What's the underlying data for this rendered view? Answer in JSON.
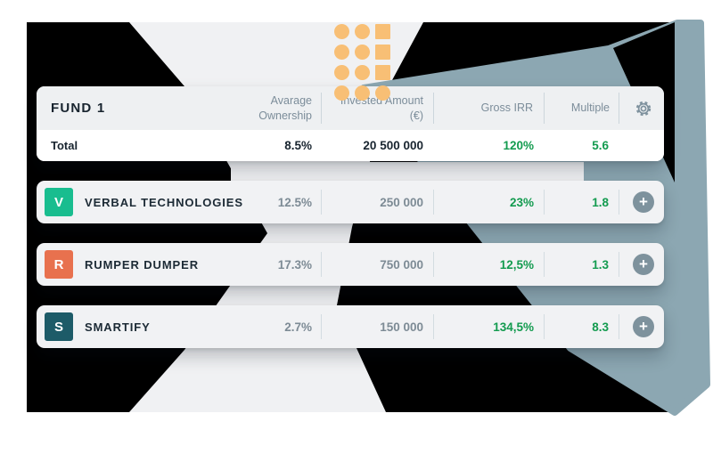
{
  "table": {
    "fund_label": "FUND 1",
    "columns": {
      "ownership": "Avarage Ownership",
      "invested": "Invested Amount (€)",
      "irr": "Gross IRR",
      "multiple": "Multiple"
    },
    "total_row": {
      "label": "Total",
      "ownership": "8.5%",
      "invested": "20 500 000",
      "irr": "120%",
      "multiple": "5.6"
    },
    "rows": [
      {
        "initial": "V",
        "name": "VERBAL TECHNOLOGIES",
        "ownership": "12.5%",
        "invested": "250 000",
        "irr": "23%",
        "multiple": "1.8",
        "icon_color": "#19bd8f",
        "expand_label": "+"
      },
      {
        "initial": "R",
        "name": "RUMPER DUMPER",
        "ownership": "17.3%",
        "invested": "750 000",
        "irr": "12,5%",
        "multiple": "1.3",
        "icon_color": "#e8714e",
        "expand_label": "+"
      },
      {
        "initial": "S",
        "name": "SMARTIFY",
        "ownership": "2.7%",
        "invested": "150 000",
        "irr": "134,5%",
        "multiple": "8.3",
        "icon_color": "#1d5b68",
        "expand_label": "+"
      }
    ]
  },
  "icons": {
    "settings": "gear-icon",
    "expand": "plus-circle-icon"
  },
  "decor": {
    "dot_grid": [
      [
        "c",
        "c",
        "s"
      ],
      [
        "c",
        "c",
        "s"
      ],
      [
        "c",
        "c",
        "s"
      ],
      [
        "c",
        "c",
        "c"
      ]
    ]
  },
  "colors": {
    "positive_green": "#139b4f",
    "accent_orange": "#f8bf75",
    "slate_sheet": "#8ca7b2",
    "black_backdrop": "#000000",
    "beam_gray": "#f0f1f3",
    "header_gray": "#eef0f2",
    "dark_text": "#18242f",
    "muted_text": "#7d8b95"
  }
}
